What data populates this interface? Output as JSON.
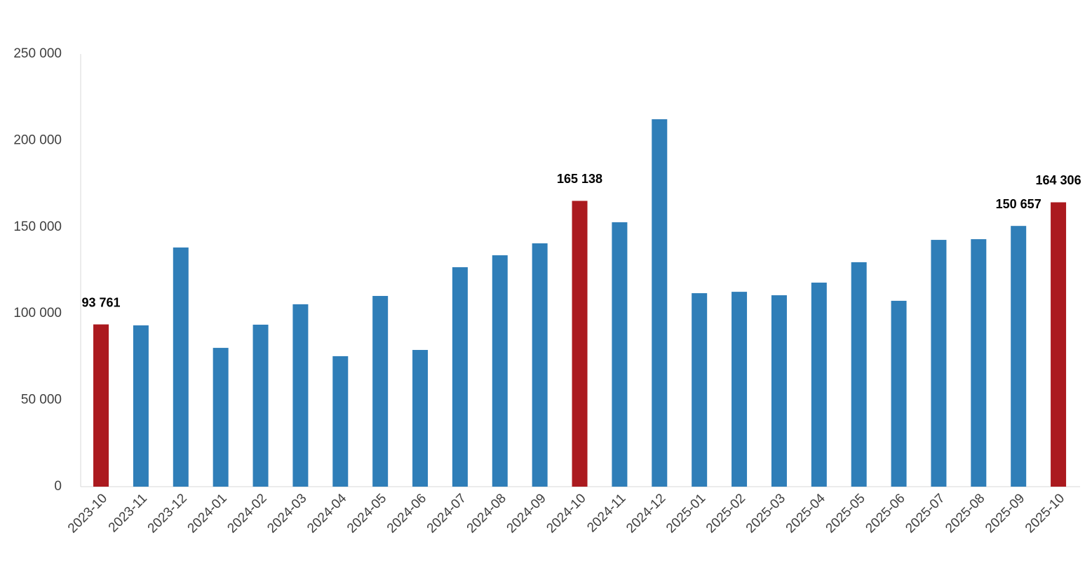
{
  "chart_data": {
    "type": "bar",
    "categories": [
      "2023-10",
      "2023-11",
      "2023-12",
      "2024-01",
      "2024-02",
      "2024-03",
      "2024-04",
      "2024-05",
      "2024-06",
      "2024-07",
      "2024-08",
      "2024-09",
      "2024-10",
      "2024-11",
      "2024-12",
      "2025-01",
      "2025-02",
      "2025-03",
      "2025-04",
      "2025-05",
      "2025-06",
      "2025-07",
      "2025-08",
      "2025-09",
      "2025-10"
    ],
    "values": [
      93761,
      93200,
      138200,
      80200,
      93600,
      105400,
      75400,
      110200,
      79000,
      126800,
      133700,
      140600,
      165138,
      152800,
      212300,
      111800,
      112600,
      110600,
      117900,
      129700,
      107400,
      142600,
      143000,
      150657,
      164306
    ],
    "value_labels": [
      "93 761",
      null,
      null,
      null,
      null,
      null,
      null,
      null,
      null,
      null,
      null,
      null,
      "165 138",
      null,
      null,
      null,
      null,
      null,
      null,
      null,
      null,
      null,
      null,
      "150 657",
      "164 306"
    ],
    "colors": [
      "#ab1a1f",
      "#2f7eb8",
      "#2f7eb8",
      "#2f7eb8",
      "#2f7eb8",
      "#2f7eb8",
      "#2f7eb8",
      "#2f7eb8",
      "#2f7eb8",
      "#2f7eb8",
      "#2f7eb8",
      "#2f7eb8",
      "#ab1a1f",
      "#2f7eb8",
      "#2f7eb8",
      "#2f7eb8",
      "#2f7eb8",
      "#2f7eb8",
      "#2f7eb8",
      "#2f7eb8",
      "#2f7eb8",
      "#2f7eb8",
      "#2f7eb8",
      "#2f7eb8",
      "#ab1a1f"
    ],
    "ylim": [
      0,
      250000
    ],
    "yticks": [
      0,
      {
        "value": 50000,
        "label": "50 000"
      },
      {
        "value": 100000,
        "label": "100 000"
      },
      {
        "value": 150000,
        "label": "150 000"
      },
      {
        "value": 200000,
        "label": "200 000"
      },
      {
        "value": 250000,
        "label": "250 000"
      }
    ],
    "grid": false
  }
}
